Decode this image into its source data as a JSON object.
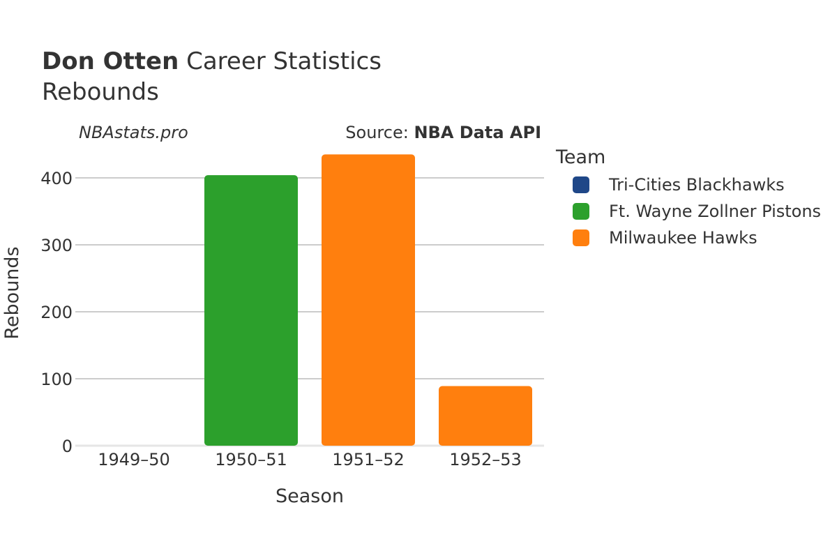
{
  "header": {
    "player": "Don Otten",
    "title_rest": " Career Statistics",
    "subtitle": "Rebounds",
    "brand": "NBAstats.pro",
    "source_prefix": "Source: ",
    "source_name": "NBA Data API"
  },
  "legend": {
    "title": "Team",
    "items": [
      {
        "label": "Tri-Cities Blackhawks",
        "color": "#1f4788"
      },
      {
        "label": "Ft. Wayne Zollner Pistons",
        "color": "#2ca02c"
      },
      {
        "label": "Milwaukee Hawks",
        "color": "#ff7f0e"
      }
    ]
  },
  "chart_data": {
    "type": "bar",
    "xlabel": "Season",
    "ylabel": "Rebounds",
    "categories": [
      "1949–50",
      "1950–51",
      "1951–52",
      "1952–53"
    ],
    "bars": [
      {
        "category": "1949–50",
        "team": "Tri-Cities Blackhawks",
        "value": 0
      },
      {
        "category": "1950–51",
        "team": "Ft. Wayne Zollner Pistons",
        "value": 404
      },
      {
        "category": "1951–52",
        "team": "Milwaukee Hawks",
        "value": 435
      },
      {
        "category": "1952–53",
        "team": "Milwaukee Hawks",
        "value": 89
      }
    ],
    "yticks": [
      0,
      100,
      200,
      300,
      400
    ],
    "ylim": [
      0,
      445
    ],
    "grid": true,
    "legend_position": "right"
  }
}
